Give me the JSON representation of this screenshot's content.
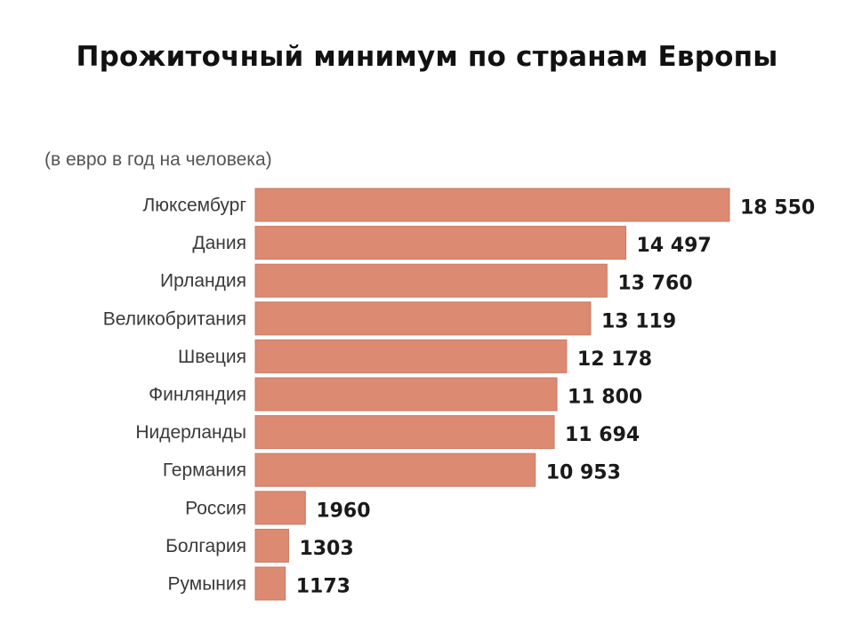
{
  "title": "Прожиточный минимум по странам Европы",
  "chart_data": {
    "type": "bar",
    "orientation": "horizontal",
    "subtitle": "(в евро в год на человека)",
    "unit": "евро в год на человека",
    "categories": [
      "Люксембург",
      "Дания",
      "Ирландия",
      "Великобритания",
      "Швеция",
      "Финляндия",
      "Нидерланды",
      "Германия",
      "Россия",
      "Болгария",
      "Румыния"
    ],
    "values": [
      18550,
      14497,
      13760,
      13119,
      12178,
      11800,
      11694,
      10953,
      1960,
      1303,
      1173
    ],
    "value_labels": [
      "18 550",
      "14 497",
      "13 760",
      "13 119",
      "12 178",
      "11 800",
      "11 694",
      "10 953",
      "1960",
      "1303",
      "1173"
    ],
    "bar_color": "#dc8a72",
    "bar_edge_color": "#c97a63",
    "grid": false,
    "legend": "none"
  }
}
